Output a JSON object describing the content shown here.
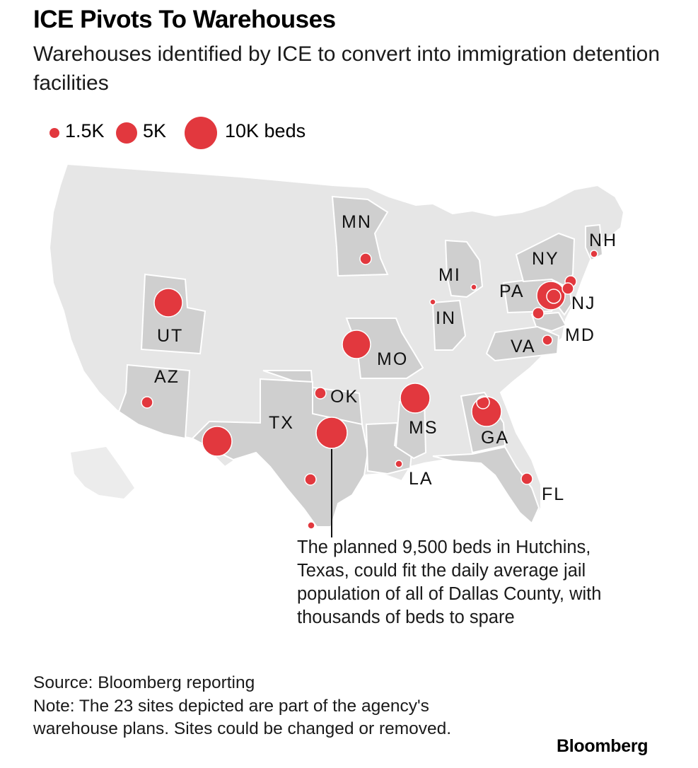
{
  "header": {
    "title": "ICE Pivots To Warehouses",
    "subtitle": "Warehouses identified by ICE to convert into immigration detention facilities"
  },
  "legend": {
    "items": [
      {
        "label": "1.5K",
        "beds": 1500
      },
      {
        "label": "5K",
        "beds": 5000
      },
      {
        "label": "10K beds",
        "beds": 10000
      }
    ]
  },
  "colors": {
    "marker": "#e2383e",
    "highlight_state": "#cfcfcf",
    "base_land": "#e6e6e6",
    "state_border": "#ffffff"
  },
  "map": {
    "state_labels": [
      "MN",
      "NH",
      "NY",
      "MI",
      "PA",
      "NJ",
      "IN",
      "MD",
      "UT",
      "VA",
      "MO",
      "AZ",
      "OK",
      "TX",
      "MS",
      "GA",
      "LA",
      "FL"
    ],
    "highlighted_states": [
      "MN",
      "NH",
      "NY",
      "MI",
      "PA",
      "NJ",
      "IN",
      "MD",
      "UT",
      "VA",
      "MO",
      "AZ",
      "OK",
      "TX",
      "MS",
      "GA",
      "LA",
      "FL"
    ]
  },
  "annotation": {
    "text": "The planned 9,500 beds in Hutchins, Texas, could fit the daily average jail population of all of Dallas County, with thousands of beds to spare"
  },
  "footer": {
    "source": "Source: Bloomberg reporting",
    "note": "Note: The 23 sites depicted are part of the agency's warehouse plans. Sites could be changed or removed."
  },
  "brand": "Bloomberg"
}
